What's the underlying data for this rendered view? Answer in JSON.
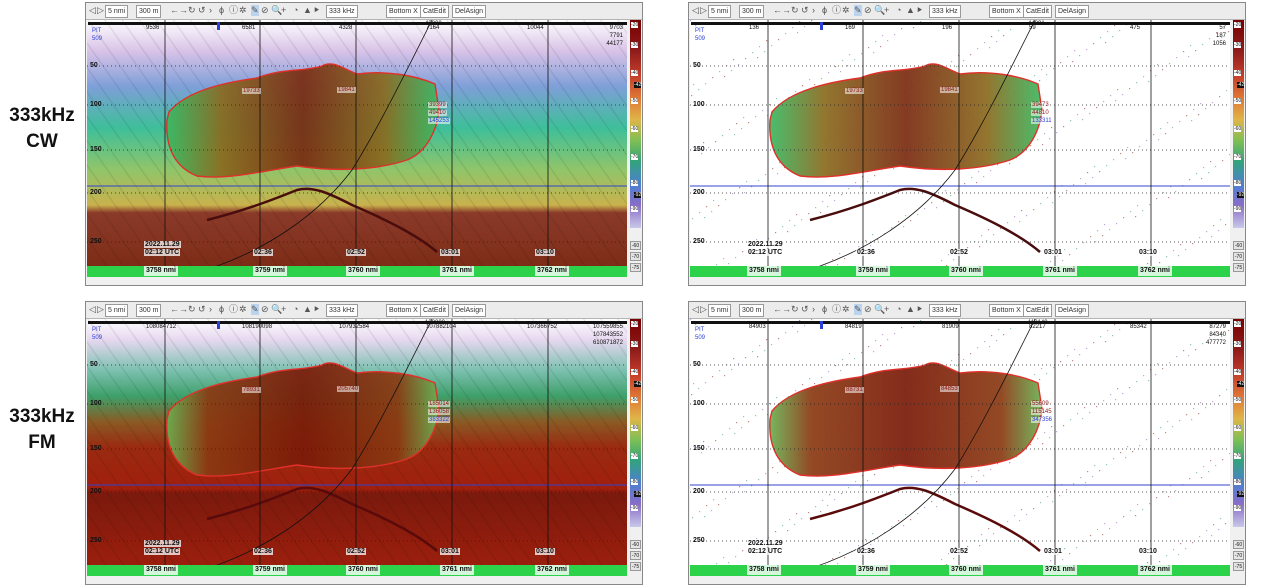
{
  "row_labels": [
    {
      "line1": "333kHz",
      "line2": "CW"
    },
    {
      "line1": "333kHz",
      "line2": "FM"
    }
  ],
  "toolbar": {
    "nav_glyphs": [
      "◁",
      "▷"
    ],
    "range_nmi": "5 nmi",
    "depth_range": "300 m",
    "freq": "333 kHz",
    "bottom_x": "Bottom X",
    "cat_edit": "CatEdit",
    "del_assign": "DelAsign",
    "tool_glyphs": [
      "←",
      "→",
      "↻",
      "↺",
      "›",
      "ϕ",
      "ⓘ",
      "✲",
      "✎",
      "⊘",
      "🔍",
      "+",
      "◔",
      "▲",
      "⯈"
    ]
  },
  "scale": {
    "labels": [
      "-20",
      "-30",
      "-40",
      "-50",
      "-60",
      "-70",
      "-80",
      "-90"
    ],
    "cursor": "-42",
    "cursor2": "-92",
    "buttons": [
      "-60",
      "-70",
      "-75"
    ]
  },
  "colors": {
    "contour": "#e0302a",
    "sea_floor": "#3344cc",
    "dist_bar": "#2cd24a"
  },
  "panels": [
    {
      "left": {
        "line1": "PIT",
        "line2": "509"
      },
      "top_vals": [
        "9536",
        "6581",
        "4328",
        "7164",
        "10044"
      ],
      "top_center": "42800",
      "top_right": [
        "9703",
        "7791",
        "44177"
      ],
      "depths": [
        "50",
        "100",
        "150",
        "200",
        "250"
      ],
      "annotations": [
        "19733",
        "19841",
        "39399",
        "49410",
        "145253"
      ],
      "timestamps": [
        "2022.11.29",
        "02:12 UTC",
        "02:36",
        "02:52",
        "03:01",
        "03:10"
      ],
      "distances": [
        "3758 nmi",
        "3759 nmi",
        "3760 nmi",
        "3761 nmi",
        "3762 nmi"
      ],
      "bg": "cw",
      "school": "cw"
    },
    {
      "left": {
        "line1": "PIT",
        "line2": "509"
      },
      "top_vals": [
        "136",
        "169",
        "196",
        "59",
        "475"
      ],
      "top_center": "44891",
      "top_right": [
        "57",
        "187",
        "1056"
      ],
      "depths": [
        "50",
        "100",
        "150",
        "200",
        "250"
      ],
      "annotations": [
        "19733",
        "19841",
        "39473",
        "44810",
        "133311"
      ],
      "timestamps": [
        "2022.11.29",
        "02:12 UTC",
        "02:36",
        "02:52",
        "03:01",
        "03:10"
      ],
      "distances": [
        "3758 nmi",
        "3759 nmi",
        "3760 nmi",
        "3761 nmi",
        "3762 nmi"
      ],
      "bg": "white",
      "school": "cw"
    },
    {
      "left": {
        "line1": "PIT",
        "line2": "509"
      },
      "top_vals": [
        "108084712",
        "108190098",
        "107932584",
        "107882104",
        "107366752"
      ],
      "top_center": "138000",
      "top_right": [
        "107559855",
        "107843552",
        "610871872"
      ],
      "depths": [
        "50",
        "100",
        "150",
        "200",
        "250"
      ],
      "annotations": [
        "78931",
        "205740",
        "185014",
        "136058",
        "383322"
      ],
      "timestamps": [
        "2022.11.29",
        "02:12 UTC",
        "02:36",
        "02:52",
        "03:01",
        "03:10"
      ],
      "distances": [
        "3758 nmi",
        "3759 nmi",
        "3760 nmi",
        "3761 nmi",
        "3762 nmi"
      ],
      "bg": "fm",
      "school": "fm"
    },
    {
      "left": {
        "line1": "PIT",
        "line2": "509"
      },
      "top_vals": [
        "84903",
        "84819",
        "81909",
        "82217",
        "85342"
      ],
      "top_center": "113149",
      "top_right": [
        "87279",
        "84340",
        "477772"
      ],
      "depths": [
        "50",
        "100",
        "150",
        "200",
        "250"
      ],
      "annotations": [
        "88731",
        "84853",
        "55609",
        "115145",
        "347356"
      ],
      "timestamps": [
        "2022.11.29",
        "02:12 UTC",
        "02:36",
        "02:52",
        "03:01",
        "03:10"
      ],
      "distances": [
        "3758 nmi",
        "3759 nmi",
        "3760 nmi",
        "3761 nmi",
        "3762 nmi"
      ],
      "bg": "white",
      "school": "fm"
    }
  ]
}
